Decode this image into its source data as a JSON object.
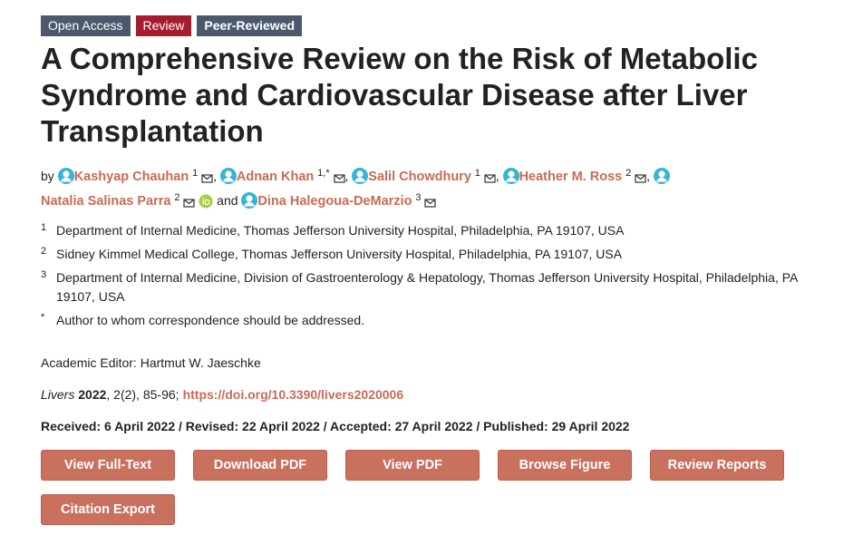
{
  "badges": [
    "Open Access",
    "Review",
    "Peer-Reviewed"
  ],
  "title": "A Comprehensive Review on the Risk of Metabolic Syndrome and Cardiovascular Disease after Liver Transplantation",
  "by": "by",
  "authors": [
    {
      "name": "Kashyap Chauhan",
      "sup": "1"
    },
    {
      "name": "Adnan Khan",
      "sup": "1,*"
    },
    {
      "name": "Salil Chowdhury",
      "sup": "1"
    },
    {
      "name": "Heather M. Ross",
      "sup": "2"
    },
    {
      "name": "Natalia Salinas Parra",
      "sup": "2",
      "orcid": true
    },
    {
      "name": "Dina Halegoua-DeMarzio",
      "sup": "3"
    }
  ],
  "separator": ",",
  "and": "and",
  "affiliations": [
    {
      "mark": "1",
      "text": "Department of Internal Medicine, Thomas Jefferson University Hospital, Philadelphia, PA 19107, USA"
    },
    {
      "mark": "2",
      "text": "Sidney Kimmel Medical College, Thomas Jefferson University Hospital, Philadelphia, PA 19107, USA"
    },
    {
      "mark": "3",
      "text": "Department of Internal Medicine, Division of Gastroenterology & Hepatology, Thomas Jefferson University Hospital, Philadelphia, PA 19107, USA"
    },
    {
      "mark": "*",
      "text": "Author to whom correspondence should be addressed."
    }
  ],
  "editor": "Academic Editor: Hartmut W. Jaeschke",
  "citation": {
    "journal": "Livers",
    "year": "2022",
    "details": ", 2(2), 85-96;",
    "doi": "https://doi.org/10.3390/livers2020006"
  },
  "dates": "Received: 6 April 2022 / Revised: 22 April 2022 / Accepted: 27 April 2022 / Published: 29 April 2022",
  "buttons": [
    "View Full-Text",
    "Download PDF",
    "View PDF",
    "Browse Figure",
    "Review Reports",
    "Citation Export"
  ]
}
